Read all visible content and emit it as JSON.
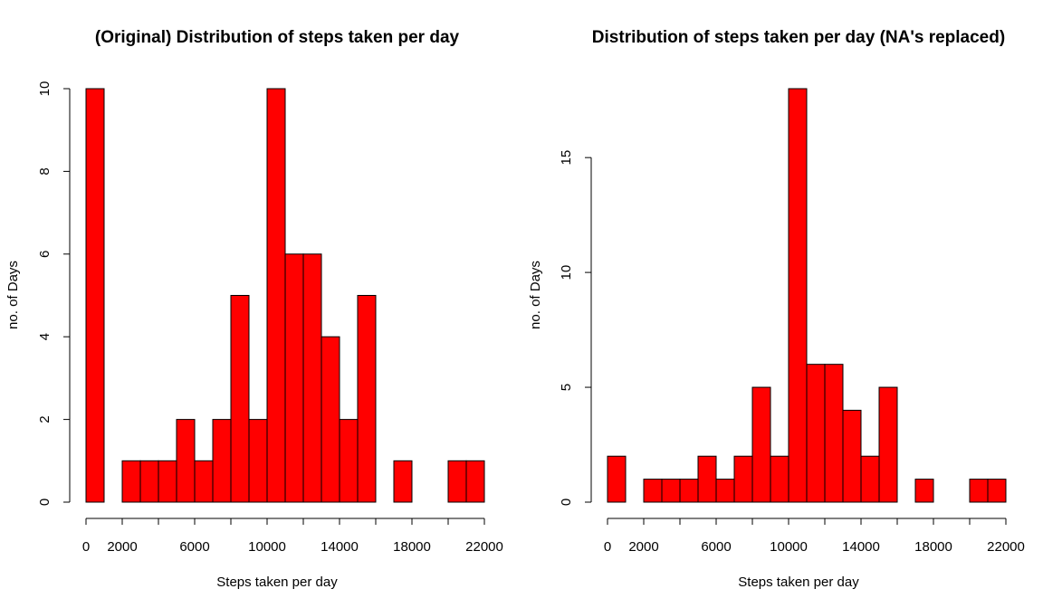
{
  "chart_data": [
    {
      "type": "bar",
      "title": "(Original) Distribution of steps taken per day",
      "xlabel": "Steps taken per day",
      "ylabel": "no. of Days",
      "bar_color": "#ff0000",
      "bin_width": 1000,
      "bin_starts": [
        0,
        1000,
        2000,
        3000,
        4000,
        5000,
        6000,
        7000,
        8000,
        9000,
        10000,
        11000,
        12000,
        13000,
        14000,
        15000,
        16000,
        17000,
        18000,
        19000,
        20000,
        21000
      ],
      "values": [
        10,
        0,
        1,
        1,
        1,
        2,
        1,
        2,
        5,
        2,
        10,
        6,
        6,
        4,
        2,
        5,
        0,
        1,
        0,
        0,
        1,
        1
      ],
      "xlim": [
        0,
        22000
      ],
      "ylim": [
        0,
        10
      ],
      "x_ticks": [
        0,
        2000,
        4000,
        6000,
        8000,
        10000,
        12000,
        14000,
        16000,
        18000,
        20000,
        22000
      ],
      "x_tick_labels": [
        "0",
        "2000",
        "",
        "6000",
        "",
        "10000",
        "",
        "14000",
        "",
        "18000",
        "",
        "22000"
      ],
      "y_ticks": [
        0,
        2,
        4,
        6,
        8,
        10
      ],
      "y_tick_labels": [
        "0",
        "2",
        "4",
        "6",
        "8",
        "10"
      ]
    },
    {
      "type": "bar",
      "title": "Distribution of steps taken per day (NA's replaced)",
      "xlabel": "Steps taken per day",
      "ylabel": "no. of Days",
      "bar_color": "#ff0000",
      "bin_width": 1000,
      "bin_starts": [
        0,
        1000,
        2000,
        3000,
        4000,
        5000,
        6000,
        7000,
        8000,
        9000,
        10000,
        11000,
        12000,
        13000,
        14000,
        15000,
        16000,
        17000,
        18000,
        19000,
        20000,
        21000
      ],
      "values": [
        2,
        0,
        1,
        1,
        1,
        2,
        1,
        2,
        5,
        2,
        18,
        6,
        6,
        4,
        2,
        5,
        0,
        1,
        0,
        0,
        1,
        1
      ],
      "xlim": [
        0,
        22000
      ],
      "ylim": [
        0,
        18
      ],
      "x_ticks": [
        0,
        2000,
        4000,
        6000,
        8000,
        10000,
        12000,
        14000,
        16000,
        18000,
        20000,
        22000
      ],
      "x_tick_labels": [
        "0",
        "2000",
        "",
        "6000",
        "",
        "10000",
        "",
        "14000",
        "",
        "18000",
        "",
        "22000"
      ],
      "y_ticks": [
        0,
        5,
        10,
        15
      ],
      "y_tick_labels": [
        "0",
        "5",
        "10",
        "15"
      ]
    }
  ]
}
